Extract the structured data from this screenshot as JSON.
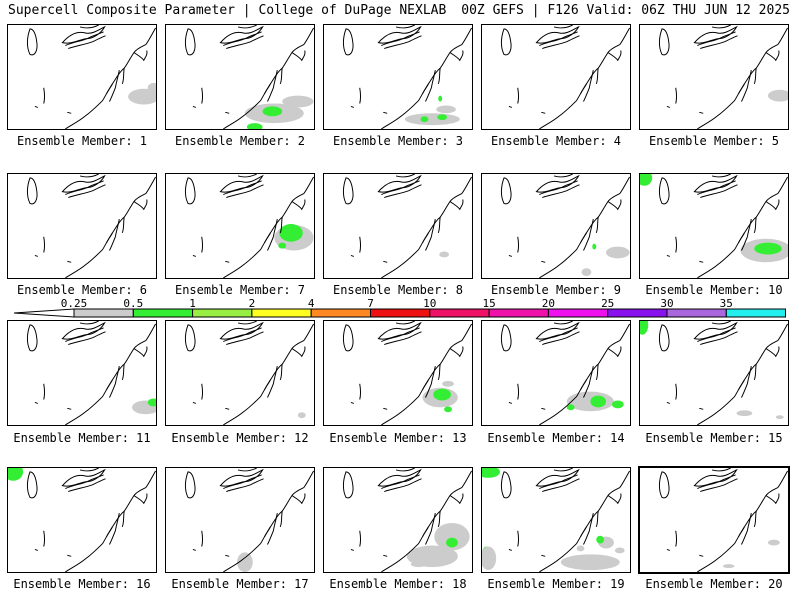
{
  "header": {
    "title": "Supercell Composite Parameter | College of DuPage NEXLAB",
    "run_info": "00Z GEFS | F126 Valid: 06Z THU JUN 12 2025"
  },
  "colorbar": {
    "labels": [
      "0.25",
      "0.5",
      "1",
      "2",
      "4",
      "7",
      "10",
      "15",
      "20",
      "25",
      "30",
      "35"
    ],
    "colors": [
      "#cccccc",
      "#33ee33",
      "#99ee44",
      "#ffff22",
      "#ff8822",
      "#ee1111",
      "#ee1166",
      "#ee11aa",
      "#ee11ee",
      "#8811ee",
      "#aa66dd",
      "#22eeee"
    ]
  },
  "colors": {
    "light_fill": "#cccccc",
    "green_fill": "#33ee33",
    "coast": "#000000"
  },
  "panels": [
    {
      "label": "Ensemble Member: 1",
      "selected": false
    },
    {
      "label": "Ensemble Member: 2",
      "selected": false
    },
    {
      "label": "Ensemble Member: 3",
      "selected": false
    },
    {
      "label": "Ensemble Member: 4",
      "selected": false
    },
    {
      "label": "Ensemble Member: 5",
      "selected": false
    },
    {
      "label": "Ensemble Member: 6",
      "selected": false
    },
    {
      "label": "Ensemble Member: 7",
      "selected": false
    },
    {
      "label": "Ensemble Member: 8",
      "selected": false
    },
    {
      "label": "Ensemble Member: 9",
      "selected": false
    },
    {
      "label": "Ensemble Member: 10",
      "selected": false
    },
    {
      "label": "Ensemble Member: 11",
      "selected": false
    },
    {
      "label": "Ensemble Member: 12",
      "selected": false
    },
    {
      "label": "Ensemble Member: 13",
      "selected": false
    },
    {
      "label": "Ensemble Member: 14",
      "selected": false
    },
    {
      "label": "Ensemble Member: 15",
      "selected": false
    },
    {
      "label": "Ensemble Member: 16",
      "selected": false
    },
    {
      "label": "Ensemble Member: 17",
      "selected": false
    },
    {
      "label": "Ensemble Member: 18",
      "selected": false
    },
    {
      "label": "Ensemble Member: 19",
      "selected": false
    },
    {
      "label": "Ensemble Member: 20",
      "selected": true
    }
  ]
}
